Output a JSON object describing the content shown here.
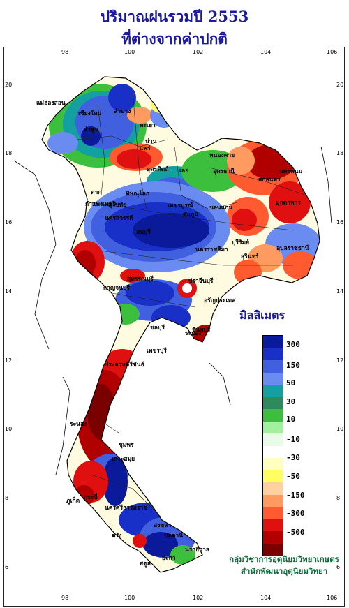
{
  "header": {
    "title_line1": "ปริมาณฝนรวมปี  2553",
    "title_line2": "ที่ต่างจากค่าปกติ"
  },
  "axes": {
    "lon_ticks": [
      "98",
      "100",
      "102",
      "104",
      "106"
    ],
    "lat_ticks": [
      "20",
      "18",
      "16",
      "14",
      "12",
      "10",
      "8",
      "6"
    ]
  },
  "legend": {
    "title": "มิลลิเมตร",
    "colors": [
      "#0a1a9a",
      "#1830c8",
      "#4060e0",
      "#6a8cf0",
      "#14a0a0",
      "#2e8a5e",
      "#3cbf3c",
      "#a0f0a0",
      "#e8fbe8",
      "#ffffff",
      "#ffffc0",
      "#ffff60",
      "#ffd0a0",
      "#ff9a60",
      "#ff5a30",
      "#e01010",
      "#b00000",
      "#7a0000"
    ],
    "labels": [
      "300",
      "150",
      "50",
      "30",
      "10",
      "-10",
      "-30",
      "-50",
      "-150",
      "-300",
      "-500"
    ]
  },
  "credit": {
    "line1": "กลุ่มวิชาการอุตุนิยมวิทยาเกษตร",
    "line2": "สำนักพัฒนาอุตุนิยมวิทยา"
  },
  "places": [
    "แม่ฮ่องสอน",
    "เชียงใหม่",
    "ลำพูน",
    "ลำปาง",
    "พะเยา",
    "น่าน",
    "แพร่",
    "อุตรดิตถ์",
    "เลย",
    "หนองคาย",
    "อุดรธานี",
    "สกลนคร",
    "นครพนม",
    "มุกดาหาร",
    "ตาก",
    "สุโขทัย",
    "พิษณุโลก",
    "เพชรบูรณ์",
    "ขอนแก่น",
    "ชัยภูมิ",
    "กำแพงเพชร",
    "นครสวรรค์",
    "ลพบุรี",
    "นครราชสีมา",
    "บุรีรัมย์",
    "สุรินทร์",
    "อุบลราชธานี",
    "กาญจนบุรี",
    "สุพรรณบุรี",
    "ปราจีนบุรี",
    "อรัญประเทศ",
    "ชลบุรี",
    "ระยอง",
    "จันทบุรี",
    "เพชรบุรี",
    "ประจวบคีรีขันธ์",
    "ระนอง",
    "ชุมพร",
    "เกาะสมุย",
    "นครศรีธรรมราช",
    "ภูเก็ต",
    "กระบี่",
    "ตรัง",
    "สงขลา",
    "ปัตตานี",
    "นราธิวาส",
    "ยะลา",
    "สตูล"
  ]
}
